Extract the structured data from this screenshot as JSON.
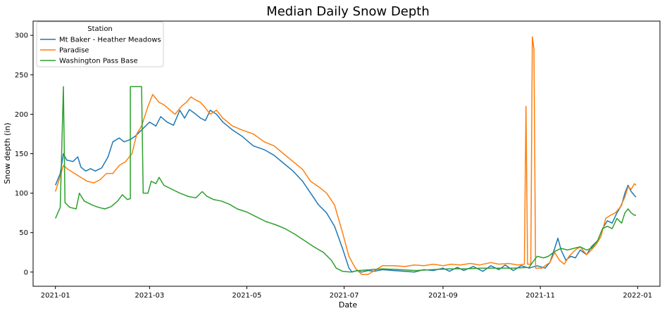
{
  "chart_data": {
    "type": "line",
    "title": "Median Daily Snow Depth",
    "xlabel": "Date",
    "ylabel": "Snow depth (in)",
    "xlim": [
      "2020-12-18",
      "2022-01-15"
    ],
    "ylim": [
      -18,
      318
    ],
    "x_ticks": [
      "2021-01-01",
      "2021-03-01",
      "2021-05-01",
      "2021-07-01",
      "2021-09-01",
      "2021-11-01",
      "2022-01-01"
    ],
    "x_tick_labels": [
      "2021-01",
      "2021-03",
      "2021-05",
      "2021-07",
      "2021-09",
      "2021-11",
      "2022-01"
    ],
    "y_ticks": [
      0,
      50,
      100,
      150,
      200,
      250,
      300
    ],
    "y_tick_labels": [
      "0",
      "50",
      "100",
      "150",
      "200",
      "250",
      "300"
    ],
    "grid": false,
    "legend": {
      "title": "Station",
      "position": "top-left"
    },
    "series": [
      {
        "name": "Mt Baker - Heather Meadows",
        "color": "#1f77b4",
        "points": [
          [
            "2021-01-01",
            110
          ],
          [
            "2021-01-04",
            125
          ],
          [
            "2021-01-06",
            150
          ],
          [
            "2021-01-08",
            142
          ],
          [
            "2021-01-12",
            140
          ],
          [
            "2021-01-15",
            146
          ],
          [
            "2021-01-17",
            133
          ],
          [
            "2021-01-20",
            128
          ],
          [
            "2021-01-23",
            131
          ],
          [
            "2021-01-26",
            128
          ],
          [
            "2021-01-30",
            132
          ],
          [
            "2021-02-03",
            146
          ],
          [
            "2021-02-06",
            165
          ],
          [
            "2021-02-10",
            170
          ],
          [
            "2021-02-13",
            165
          ],
          [
            "2021-02-17",
            168
          ],
          [
            "2021-02-20",
            172
          ],
          [
            "2021-02-24",
            180
          ],
          [
            "2021-03-01",
            190
          ],
          [
            "2021-03-05",
            185
          ],
          [
            "2021-03-08",
            197
          ],
          [
            "2021-03-12",
            190
          ],
          [
            "2021-03-16",
            186
          ],
          [
            "2021-03-20",
            205
          ],
          [
            "2021-03-23",
            195
          ],
          [
            "2021-03-26",
            206
          ],
          [
            "2021-03-30",
            200
          ],
          [
            "2021-04-02",
            195
          ],
          [
            "2021-04-05",
            192
          ],
          [
            "2021-04-08",
            205
          ],
          [
            "2021-04-12",
            200
          ],
          [
            "2021-04-16",
            190
          ],
          [
            "2021-04-22",
            180
          ],
          [
            "2021-04-28",
            172
          ],
          [
            "2021-05-05",
            160
          ],
          [
            "2021-05-12",
            155
          ],
          [
            "2021-05-18",
            148
          ],
          [
            "2021-05-24",
            138
          ],
          [
            "2021-05-30",
            128
          ],
          [
            "2021-06-05",
            115
          ],
          [
            "2021-06-10",
            100
          ],
          [
            "2021-06-15",
            85
          ],
          [
            "2021-06-20",
            75
          ],
          [
            "2021-06-25",
            58
          ],
          [
            "2021-06-30",
            30
          ],
          [
            "2021-07-04",
            5
          ],
          [
            "2021-07-06",
            0
          ],
          [
            "2021-07-09",
            2
          ],
          [
            "2021-07-12",
            0
          ],
          [
            "2021-07-16",
            2
          ],
          [
            "2021-07-20",
            1
          ],
          [
            "2021-07-25",
            3
          ],
          [
            "2021-08-01",
            2
          ],
          [
            "2021-08-08",
            1
          ],
          [
            "2021-08-14",
            0
          ],
          [
            "2021-08-20",
            3
          ],
          [
            "2021-08-26",
            2
          ],
          [
            "2021-09-01",
            5
          ],
          [
            "2021-09-05",
            1
          ],
          [
            "2021-09-10",
            6
          ],
          [
            "2021-09-14",
            2
          ],
          [
            "2021-09-20",
            7
          ],
          [
            "2021-09-26",
            1
          ],
          [
            "2021-10-01",
            8
          ],
          [
            "2021-10-06",
            3
          ],
          [
            "2021-10-10",
            9
          ],
          [
            "2021-10-15",
            2
          ],
          [
            "2021-10-20",
            8
          ],
          [
            "2021-10-25",
            5
          ],
          [
            "2021-10-30",
            8
          ],
          [
            "2021-11-04",
            5
          ],
          [
            "2021-11-07",
            12
          ],
          [
            "2021-11-10",
            30
          ],
          [
            "2021-11-12",
            43
          ],
          [
            "2021-11-14",
            28
          ],
          [
            "2021-11-17",
            15
          ],
          [
            "2021-11-20",
            20
          ],
          [
            "2021-11-23",
            18
          ],
          [
            "2021-11-26",
            28
          ],
          [
            "2021-11-30",
            22
          ],
          [
            "2021-12-03",
            32
          ],
          [
            "2021-12-07",
            40
          ],
          [
            "2021-12-10",
            55
          ],
          [
            "2021-12-13",
            65
          ],
          [
            "2021-12-16",
            62
          ],
          [
            "2021-12-19",
            75
          ],
          [
            "2021-12-22",
            85
          ],
          [
            "2021-12-24",
            100
          ],
          [
            "2021-12-26",
            110
          ],
          [
            "2021-12-28",
            102
          ],
          [
            "2021-12-30",
            97
          ],
          [
            "2021-12-31",
            95
          ]
        ]
      },
      {
        "name": "Paradise",
        "color": "#ff7f0e",
        "points": [
          [
            "2021-01-01",
            102
          ],
          [
            "2021-01-03",
            115
          ],
          [
            "2021-01-06",
            135
          ],
          [
            "2021-01-09",
            130
          ],
          [
            "2021-01-13",
            125
          ],
          [
            "2021-01-17",
            120
          ],
          [
            "2021-01-21",
            115
          ],
          [
            "2021-01-25",
            113
          ],
          [
            "2021-01-29",
            117
          ],
          [
            "2021-02-02",
            125
          ],
          [
            "2021-02-06",
            125
          ],
          [
            "2021-02-10",
            135
          ],
          [
            "2021-02-14",
            140
          ],
          [
            "2021-02-18",
            150
          ],
          [
            "2021-02-21",
            175
          ],
          [
            "2021-02-24",
            185
          ],
          [
            "2021-02-28",
            210
          ],
          [
            "2021-03-03",
            225
          ],
          [
            "2021-03-07",
            215
          ],
          [
            "2021-03-10",
            212
          ],
          [
            "2021-03-14",
            205
          ],
          [
            "2021-03-17",
            200
          ],
          [
            "2021-03-21",
            210
          ],
          [
            "2021-03-24",
            215
          ],
          [
            "2021-03-27",
            222
          ],
          [
            "2021-03-30",
            218
          ],
          [
            "2021-04-02",
            215
          ],
          [
            "2021-04-05",
            208
          ],
          [
            "2021-04-08",
            200
          ],
          [
            "2021-04-12",
            205
          ],
          [
            "2021-04-16",
            195
          ],
          [
            "2021-04-22",
            185
          ],
          [
            "2021-04-28",
            180
          ],
          [
            "2021-05-05",
            175
          ],
          [
            "2021-05-12",
            165
          ],
          [
            "2021-05-18",
            160
          ],
          [
            "2021-05-24",
            150
          ],
          [
            "2021-05-30",
            140
          ],
          [
            "2021-06-05",
            130
          ],
          [
            "2021-06-10",
            115
          ],
          [
            "2021-06-15",
            108
          ],
          [
            "2021-06-20",
            100
          ],
          [
            "2021-06-25",
            85
          ],
          [
            "2021-06-30",
            50
          ],
          [
            "2021-07-04",
            20
          ],
          [
            "2021-07-08",
            5
          ],
          [
            "2021-07-12",
            -3
          ],
          [
            "2021-07-16",
            -3
          ],
          [
            "2021-07-20",
            2
          ],
          [
            "2021-07-25",
            8
          ],
          [
            "2021-08-01",
            8
          ],
          [
            "2021-08-08",
            7
          ],
          [
            "2021-08-14",
            9
          ],
          [
            "2021-08-20",
            8
          ],
          [
            "2021-08-26",
            10
          ],
          [
            "2021-09-01",
            8
          ],
          [
            "2021-09-06",
            10
          ],
          [
            "2021-09-12",
            9
          ],
          [
            "2021-09-18",
            11
          ],
          [
            "2021-09-24",
            9
          ],
          [
            "2021-10-01",
            12
          ],
          [
            "2021-10-06",
            10
          ],
          [
            "2021-10-12",
            11
          ],
          [
            "2021-10-18",
            9
          ],
          [
            "2021-10-22",
            10
          ],
          [
            "2021-10-23",
            210
          ],
          [
            "2021-10-24",
            10
          ],
          [
            "2021-10-26",
            10
          ],
          [
            "2021-10-27",
            298
          ],
          [
            "2021-10-28",
            282
          ],
          [
            "2021-10-29",
            5
          ],
          [
            "2021-11-02",
            5
          ],
          [
            "2021-11-04",
            8
          ],
          [
            "2021-11-07",
            12
          ],
          [
            "2021-11-10",
            25
          ],
          [
            "2021-11-13",
            15
          ],
          [
            "2021-11-16",
            10
          ],
          [
            "2021-11-19",
            20
          ],
          [
            "2021-11-23",
            28
          ],
          [
            "2021-11-26",
            32
          ],
          [
            "2021-11-30",
            22
          ],
          [
            "2021-12-03",
            28
          ],
          [
            "2021-12-06",
            35
          ],
          [
            "2021-12-09",
            45
          ],
          [
            "2021-12-12",
            68
          ],
          [
            "2021-12-15",
            72
          ],
          [
            "2021-12-18",
            75
          ],
          [
            "2021-12-21",
            82
          ],
          [
            "2021-12-24",
            95
          ],
          [
            "2021-12-26",
            108
          ],
          [
            "2021-12-28",
            105
          ],
          [
            "2021-12-30",
            112
          ],
          [
            "2021-12-31",
            110
          ]
        ]
      },
      {
        "name": "Washington Pass Base",
        "color": "#2ca02c",
        "points": [
          [
            "2021-01-01",
            68
          ],
          [
            "2021-01-04",
            82
          ],
          [
            "2021-01-06",
            235
          ],
          [
            "2021-01-07",
            88
          ],
          [
            "2021-01-10",
            82
          ],
          [
            "2021-01-14",
            80
          ],
          [
            "2021-01-16",
            100
          ],
          [
            "2021-01-19",
            90
          ],
          [
            "2021-01-24",
            85
          ],
          [
            "2021-01-28",
            82
          ],
          [
            "2021-02-01",
            80
          ],
          [
            "2021-02-05",
            83
          ],
          [
            "2021-02-09",
            90
          ],
          [
            "2021-02-12",
            98
          ],
          [
            "2021-02-15",
            92
          ],
          [
            "2021-02-17",
            93
          ],
          [
            "2021-02-17",
            235
          ],
          [
            "2021-02-24",
            235
          ],
          [
            "2021-02-25",
            100
          ],
          [
            "2021-02-28",
            100
          ],
          [
            "2021-03-02",
            115
          ],
          [
            "2021-03-05",
            112
          ],
          [
            "2021-03-07",
            120
          ],
          [
            "2021-03-10",
            110
          ],
          [
            "2021-03-15",
            105
          ],
          [
            "2021-03-20",
            100
          ],
          [
            "2021-03-25",
            96
          ],
          [
            "2021-03-30",
            94
          ],
          [
            "2021-04-03",
            102
          ],
          [
            "2021-04-06",
            96
          ],
          [
            "2021-04-10",
            92
          ],
          [
            "2021-04-15",
            90
          ],
          [
            "2021-04-20",
            86
          ],
          [
            "2021-04-25",
            80
          ],
          [
            "2021-05-01",
            76
          ],
          [
            "2021-05-07",
            70
          ],
          [
            "2021-05-13",
            64
          ],
          [
            "2021-05-19",
            60
          ],
          [
            "2021-05-25",
            55
          ],
          [
            "2021-05-31",
            48
          ],
          [
            "2021-06-06",
            40
          ],
          [
            "2021-06-12",
            32
          ],
          [
            "2021-06-18",
            25
          ],
          [
            "2021-06-23",
            15
          ],
          [
            "2021-06-26",
            5
          ],
          [
            "2021-06-30",
            1
          ],
          [
            "2021-07-05",
            0
          ],
          [
            "2021-07-10",
            2
          ],
          [
            "2021-07-18",
            3
          ],
          [
            "2021-07-25",
            4
          ],
          [
            "2021-08-05",
            3
          ],
          [
            "2021-08-15",
            2
          ],
          [
            "2021-08-25",
            3
          ],
          [
            "2021-09-05",
            4
          ],
          [
            "2021-09-15",
            4
          ],
          [
            "2021-09-25",
            5
          ],
          [
            "2021-10-05",
            5
          ],
          [
            "2021-10-15",
            5
          ],
          [
            "2021-10-25",
            6
          ],
          [
            "2021-10-27",
            12
          ],
          [
            "2021-10-30",
            20
          ],
          [
            "2021-11-03",
            18
          ],
          [
            "2021-11-06",
            20
          ],
          [
            "2021-11-10",
            26
          ],
          [
            "2021-11-14",
            30
          ],
          [
            "2021-11-18",
            28
          ],
          [
            "2021-11-22",
            30
          ],
          [
            "2021-11-26",
            32
          ],
          [
            "2021-11-30",
            28
          ],
          [
            "2021-12-03",
            30
          ],
          [
            "2021-12-07",
            40
          ],
          [
            "2021-12-10",
            55
          ],
          [
            "2021-12-13",
            58
          ],
          [
            "2021-12-16",
            55
          ],
          [
            "2021-12-19",
            68
          ],
          [
            "2021-12-22",
            62
          ],
          [
            "2021-12-24",
            75
          ],
          [
            "2021-12-26",
            80
          ],
          [
            "2021-12-28",
            75
          ],
          [
            "2021-12-30",
            72
          ],
          [
            "2021-12-31",
            72
          ]
        ]
      }
    ]
  }
}
